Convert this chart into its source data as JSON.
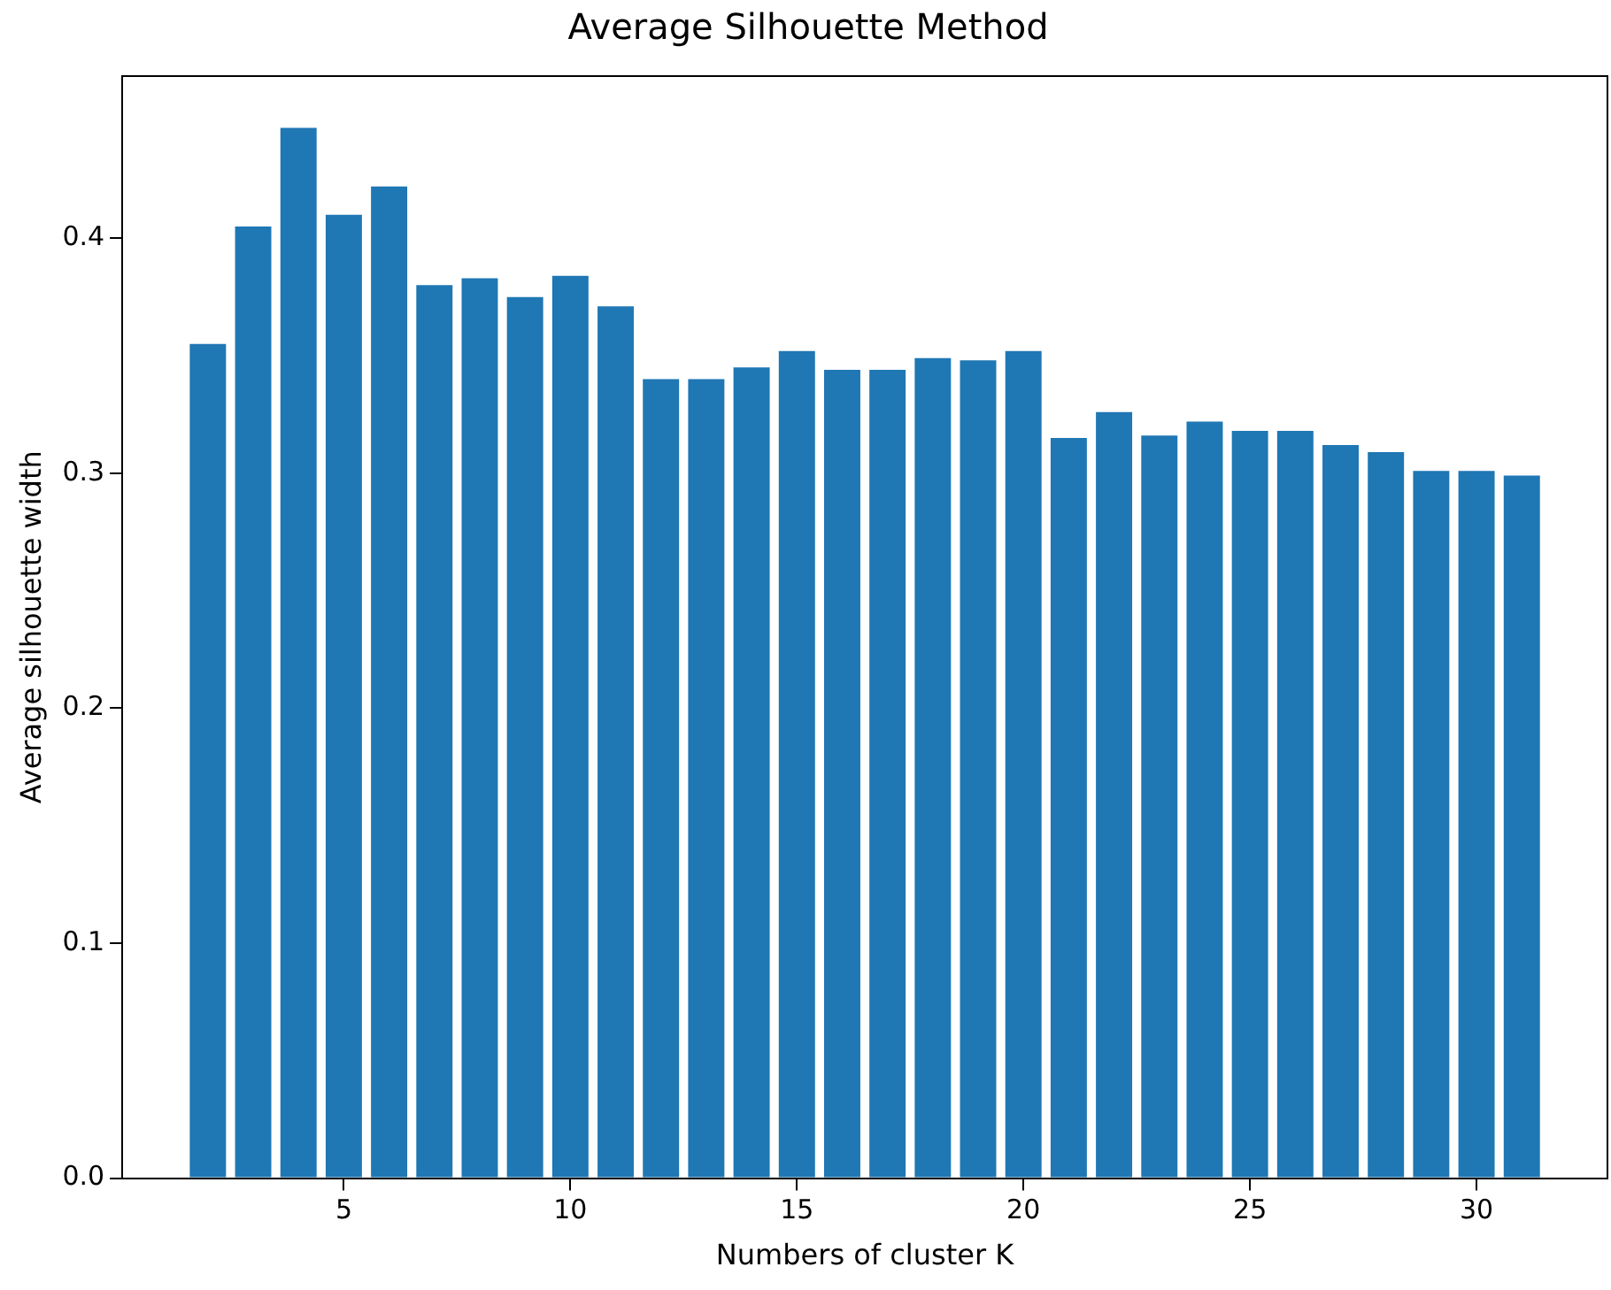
{
  "chart_data": {
    "type": "bar",
    "title": "Average Silhouette Method",
    "xlabel": "Numbers of cluster K",
    "ylabel": "Average silhouette width",
    "x": [
      2,
      3,
      4,
      5,
      6,
      7,
      8,
      9,
      10,
      11,
      12,
      13,
      14,
      15,
      16,
      17,
      18,
      19,
      20,
      21,
      22,
      23,
      24,
      25,
      26,
      27,
      28,
      29,
      30,
      31
    ],
    "values": [
      0.355,
      0.405,
      0.447,
      0.41,
      0.422,
      0.38,
      0.383,
      0.375,
      0.384,
      0.371,
      0.34,
      0.34,
      0.345,
      0.352,
      0.344,
      0.344,
      0.349,
      0.348,
      0.352,
      0.315,
      0.326,
      0.316,
      0.322,
      0.318,
      0.318,
      0.312,
      0.309,
      0.301,
      0.301,
      0.299
    ],
    "color": "#1f77b4",
    "xlim": [
      0.11,
      32.89
    ],
    "xticks": [
      5,
      10,
      15,
      20,
      25,
      30
    ],
    "ylim": [
      0,
      0.469
    ],
    "yticks": [
      {
        "value": 0,
        "label": "0.0"
      },
      {
        "value": 0.1,
        "label": "0.1"
      },
      {
        "value": 0.2,
        "label": "0.2"
      },
      {
        "value": 0.3,
        "label": "0.3"
      },
      {
        "value": 0.4,
        "label": "0.4"
      }
    ],
    "grid": false,
    "legend": false
  }
}
